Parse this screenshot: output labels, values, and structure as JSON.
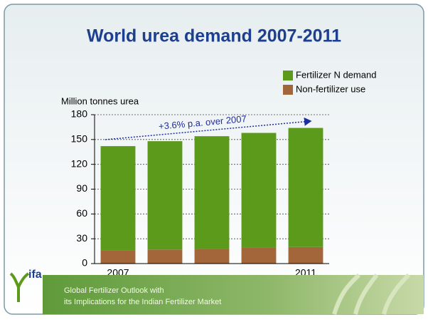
{
  "chart_data": {
    "type": "stacked_bar",
    "title": "World urea demand 2007-2011",
    "y_label": "Million tonnes urea",
    "annotation": "+3.6% p.a. over 2007",
    "categories": [
      "2007",
      null,
      null,
      null,
      "2011"
    ],
    "series": [
      {
        "name": "Non-fertilizer use",
        "color": "#a2663a",
        "values": [
          16,
          17,
          18,
          19,
          20
        ]
      },
      {
        "name": "Fertilizer N demand",
        "color": "#5c9a1c",
        "values": [
          126,
          131,
          136,
          139,
          144
        ]
      }
    ],
    "legend_order": [
      1,
      0
    ],
    "ylim": [
      0,
      180
    ],
    "yticks": [
      0,
      30,
      60,
      90,
      120,
      150,
      180
    ],
    "grid": true
  },
  "footer": {
    "logo": "ifa",
    "lines": [
      "Global Fertilizer Outlook with",
      "its Implications for the Indian Fertilizer Market"
    ]
  }
}
